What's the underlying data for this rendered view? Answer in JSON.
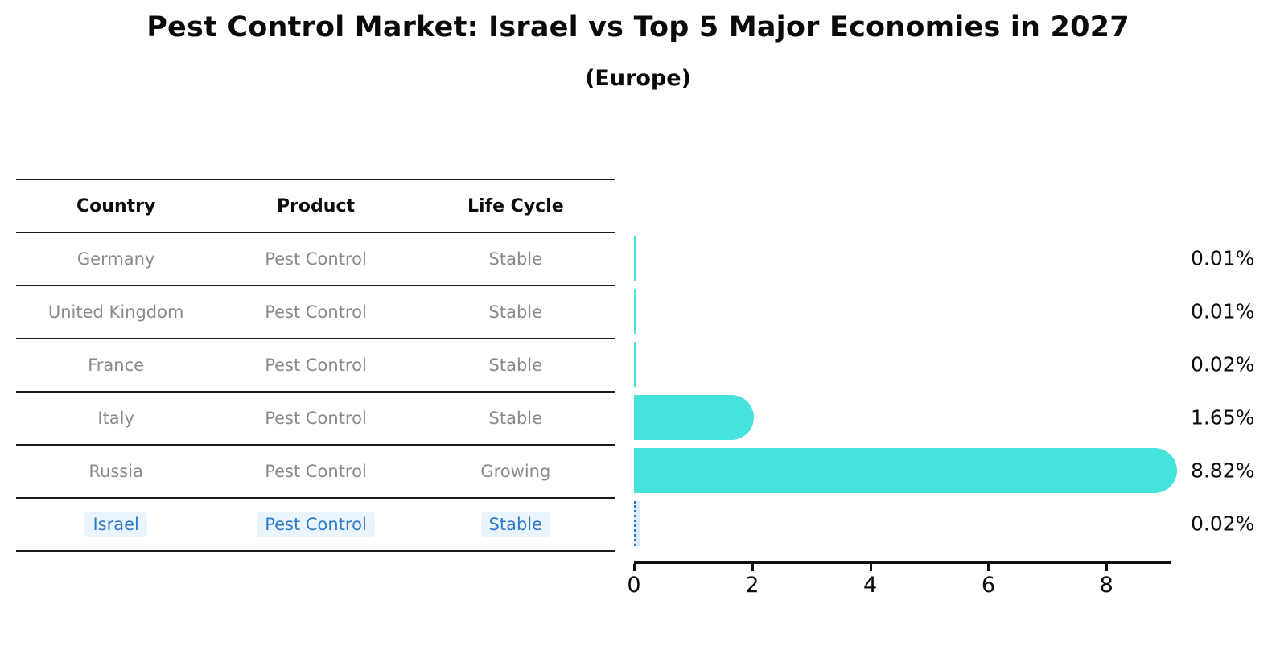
{
  "title": "Pest Control Market: Israel vs Top 5 Major Economies in 2027",
  "subtitle": "(Europe)",
  "table": {
    "columns": [
      "Country",
      "Product",
      "Life Cycle"
    ],
    "rows": [
      {
        "country": "Germany",
        "product": "Pest Control",
        "life_cycle": "Stable",
        "highlight": false
      },
      {
        "country": "United Kingdom",
        "product": "Pest Control",
        "life_cycle": "Stable",
        "highlight": false
      },
      {
        "country": "France",
        "product": "Pest Control",
        "life_cycle": "Stable",
        "highlight": false
      },
      {
        "country": "Italy",
        "product": "Pest Control",
        "life_cycle": "Stable",
        "highlight": false
      },
      {
        "country": "Russia",
        "product": "Pest Control",
        "life_cycle": "Growing",
        "highlight": false
      },
      {
        "country": "Israel",
        "product": "Pest Control",
        "life_cycle": "Stable",
        "highlight": true
      }
    ]
  },
  "chart_data": {
    "type": "bar",
    "orientation": "horizontal",
    "title": "Pest Control Market: Israel vs Top 5 Major Economies in 2027",
    "subtitle": "(Europe)",
    "categories": [
      "Germany",
      "United Kingdom",
      "France",
      "Italy",
      "Russia",
      "Israel"
    ],
    "values": [
      0.01,
      0.01,
      0.02,
      1.65,
      8.82,
      0.02
    ],
    "value_labels": [
      "0.01%",
      "0.01%",
      "0.02%",
      "1.65%",
      "8.82%",
      "0.02%"
    ],
    "xlabel": "",
    "ylabel": "",
    "xlim": [
      0,
      9.1
    ],
    "x_ticks": [
      0,
      2,
      4,
      6,
      8
    ],
    "grid": false,
    "legend": "none",
    "bar_color": "#46e3dc",
    "highlight_category": "Israel",
    "highlight_color": "#2e7cc9",
    "value_unit": "%"
  },
  "colors": {
    "text": "#0d0d0d",
    "muted_text": "#8a8a8a",
    "table_line": "#1c1c1c",
    "bar": "#46e3dc",
    "highlight": "#2e7cc9"
  }
}
